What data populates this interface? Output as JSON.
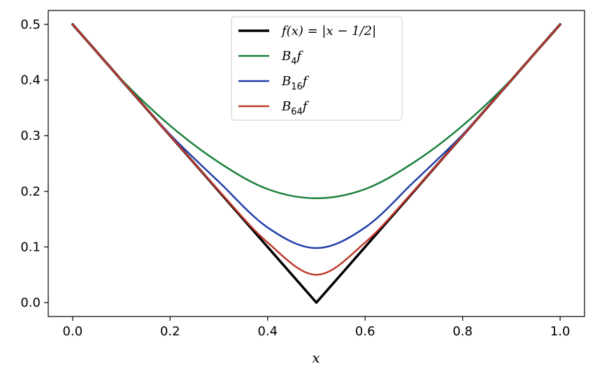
{
  "chart_data": {
    "type": "line",
    "xlabel": "x",
    "ylabel": "",
    "xlim": [
      -0.05,
      1.05
    ],
    "ylim": [
      -0.025,
      0.525
    ],
    "xticks": [
      "0.0",
      "0.2",
      "0.4",
      "0.6",
      "0.8",
      "1.0"
    ],
    "yticks": [
      "0.0",
      "0.1",
      "0.2",
      "0.3",
      "0.4",
      "0.5"
    ],
    "grid": false,
    "legend_position": "top-center",
    "series": [
      {
        "name": "f(x) = |x − 1/2|",
        "color": "#000000",
        "x": [
          0.0,
          0.1,
          0.2,
          0.3,
          0.4,
          0.5,
          0.6,
          0.7,
          0.8,
          0.9,
          1.0
        ],
        "y": [
          0.5,
          0.4,
          0.3,
          0.2,
          0.1,
          0.0,
          0.1,
          0.2,
          0.3,
          0.4,
          0.5
        ]
      },
      {
        "name": "B4f",
        "color": "#1a7f3c",
        "x": [
          0.0,
          0.1,
          0.2,
          0.3,
          0.4,
          0.5,
          0.6,
          0.7,
          0.8,
          0.9,
          1.0
        ],
        "y": [
          0.5,
          0.401,
          0.318,
          0.252,
          0.204,
          0.1875,
          0.204,
          0.252,
          0.318,
          0.401,
          0.5
        ]
      },
      {
        "name": "B16f",
        "color": "#1f3ea8",
        "x": [
          0.0,
          0.1,
          0.2,
          0.3,
          0.4,
          0.5,
          0.6,
          0.7,
          0.8,
          0.9,
          1.0
        ],
        "y": [
          0.5,
          0.4,
          0.302,
          0.217,
          0.135,
          0.098,
          0.135,
          0.217,
          0.302,
          0.4,
          0.5
        ]
      },
      {
        "name": "B64f",
        "color": "#c0392b",
        "x": [
          0.0,
          0.1,
          0.2,
          0.3,
          0.4,
          0.5,
          0.6,
          0.7,
          0.8,
          0.9,
          1.0
        ],
        "y": [
          0.5,
          0.4,
          0.3,
          0.201,
          0.108,
          0.05,
          0.108,
          0.201,
          0.3,
          0.4,
          0.5
        ]
      }
    ]
  },
  "legend": {
    "items": [
      {
        "pre": "f",
        "mid": "(x) = |x − 1/2|",
        "sub": "",
        "post": "",
        "color": "#000000",
        "width": 3.5
      },
      {
        "pre": "B",
        "mid": "",
        "sub": "4",
        "post": "f",
        "color": "#1a7f3c",
        "width": 2.5
      },
      {
        "pre": "B",
        "mid": "",
        "sub": "16",
        "post": "f",
        "color": "#1f3ea8",
        "width": 2.5
      },
      {
        "pre": "B",
        "mid": "",
        "sub": "64",
        "post": "f",
        "color": "#c0392b",
        "width": 2.5
      }
    ]
  }
}
